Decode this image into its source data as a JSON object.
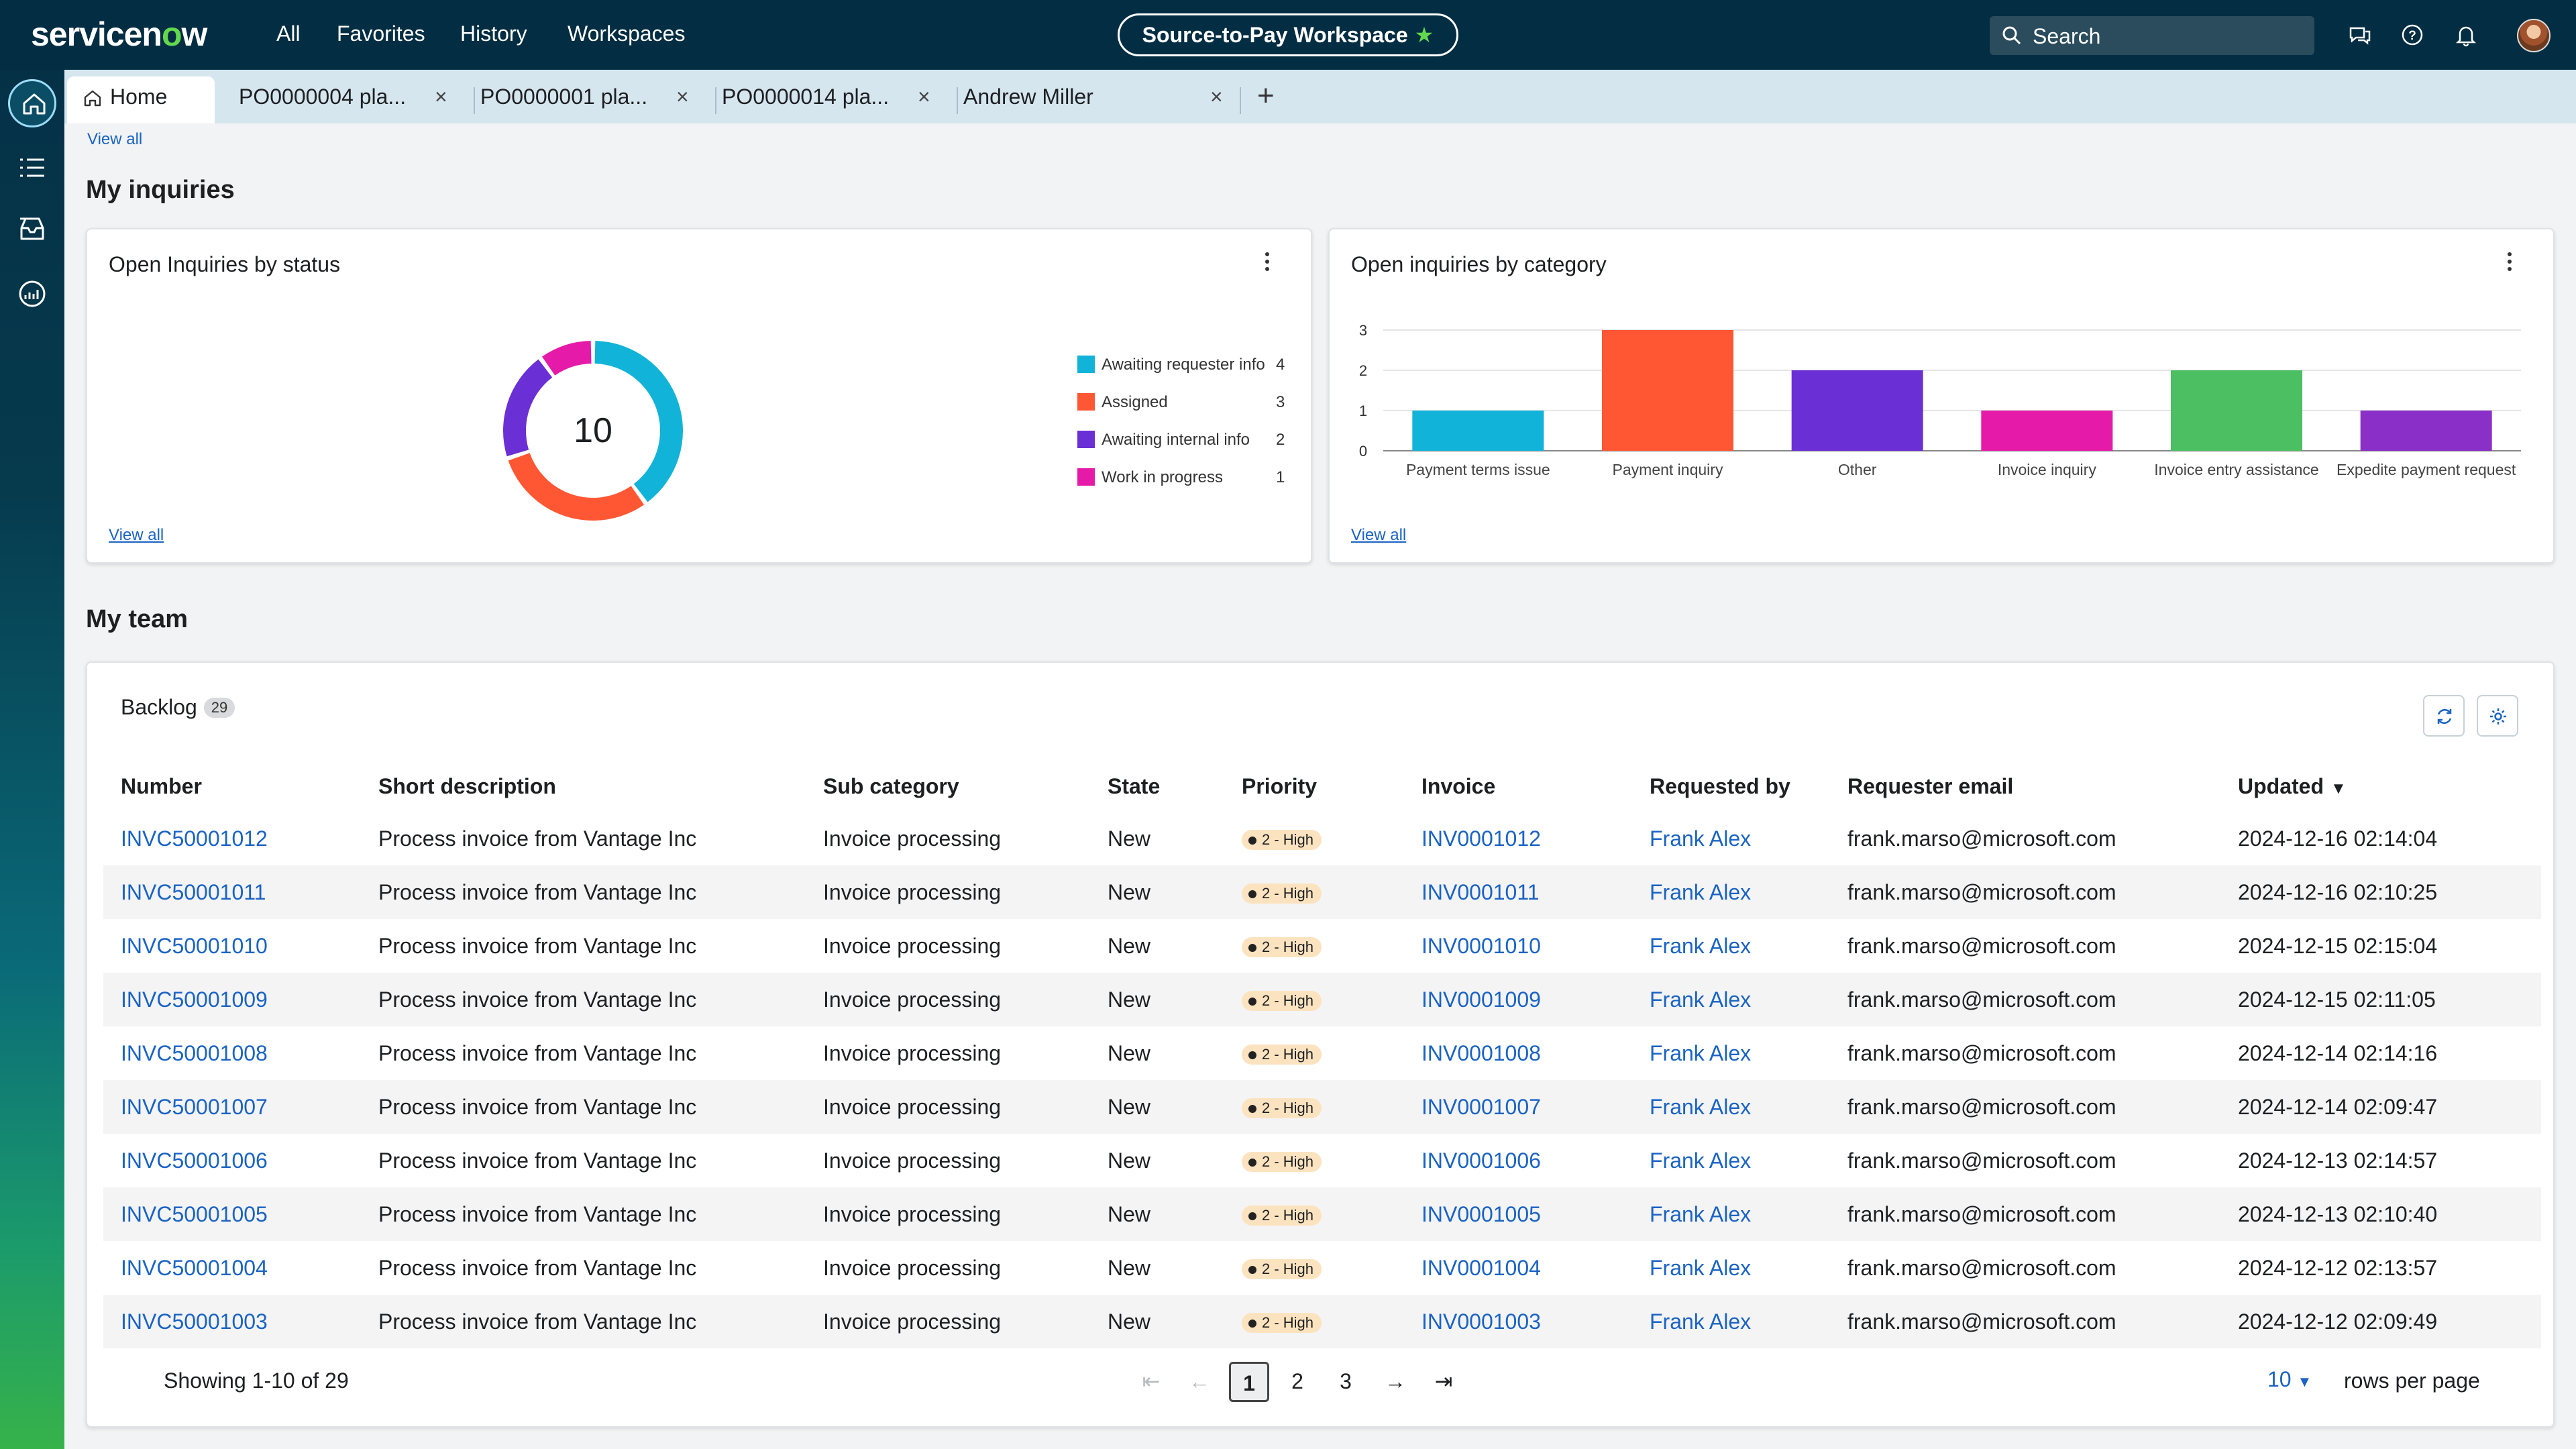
{
  "header": {
    "logo": "servicenow",
    "nav": [
      "All",
      "Favorites",
      "History",
      "Workspaces"
    ],
    "workspace": "Source-to-Pay Workspace",
    "search_placeholder": "Search"
  },
  "tabs": [
    {
      "label": "Home"
    },
    {
      "label": "PO0000004 pla..."
    },
    {
      "label": "PO0000001 pla..."
    },
    {
      "label": "PO0000014 pla..."
    },
    {
      "label": "Andrew Miller"
    }
  ],
  "top_view_all": "View all",
  "inquiries": {
    "title": "My inquiries",
    "status_card": {
      "title": "Open Inquiries by status",
      "total": "10",
      "view_all": "View all"
    },
    "category_card": {
      "title": "Open inquiries by category",
      "view_all": "View all"
    }
  },
  "colors": {
    "awaiting_requester": "#12b3d8",
    "assigned": "#ff5733",
    "awaiting_internal": "#6b2fd6",
    "work_in_progress": "#e61aa8",
    "cat_payment_terms": "#12b3d8",
    "cat_payment_inquiry": "#ff5733",
    "cat_other": "#6b2fd6",
    "cat_invoice_inquiry": "#e61aa8",
    "cat_invoice_entry": "#4bbf62",
    "cat_expedite": "#8a2fc7",
    "accent_link": "#1a63c4"
  },
  "chart_data": [
    {
      "type": "pie",
      "title": "Open Inquiries by status",
      "categories": [
        "Awaiting requester info",
        "Assigned",
        "Awaiting internal info",
        "Work in progress"
      ],
      "values": [
        4,
        3,
        2,
        1
      ],
      "center_label": "10",
      "legend": "right"
    },
    {
      "type": "bar",
      "title": "Open inquiries by category",
      "categories": [
        "Payment terms issue",
        "Payment inquiry",
        "Other",
        "Invoice inquiry",
        "Invoice entry assistance",
        "Expedite payment request"
      ],
      "values": [
        1,
        3,
        2,
        1,
        2,
        1
      ],
      "yticks": [
        "0",
        "1",
        "2",
        "3"
      ],
      "ylim": [
        0,
        3
      ],
      "grid": true
    }
  ],
  "team": {
    "title": "My team",
    "backlog_label": "Backlog",
    "backlog_count": "29",
    "columns": [
      "Number",
      "Short description",
      "Sub category",
      "State",
      "Priority",
      "Invoice",
      "Requested by",
      "Requester email",
      "Updated"
    ],
    "rows": [
      {
        "number": "INVC50001012",
        "desc": "Process invoice from Vantage Inc",
        "sub": "Invoice processing",
        "state": "New",
        "priority": "2 - High",
        "invoice": "INV0001012",
        "requested_by": "Frank Alex",
        "email": "frank.marso@microsoft.com",
        "updated": "2024-12-16 02:14:04"
      },
      {
        "number": "INVC50001011",
        "desc": "Process invoice from Vantage Inc",
        "sub": "Invoice processing",
        "state": "New",
        "priority": "2 - High",
        "invoice": "INV0001011",
        "requested_by": "Frank Alex",
        "email": "frank.marso@microsoft.com",
        "updated": "2024-12-16 02:10:25"
      },
      {
        "number": "INVC50001010",
        "desc": "Process invoice from Vantage Inc",
        "sub": "Invoice processing",
        "state": "New",
        "priority": "2 - High",
        "invoice": "INV0001010",
        "requested_by": "Frank Alex",
        "email": "frank.marso@microsoft.com",
        "updated": "2024-12-15 02:15:04"
      },
      {
        "number": "INVC50001009",
        "desc": "Process invoice from Vantage Inc",
        "sub": "Invoice processing",
        "state": "New",
        "priority": "2 - High",
        "invoice": "INV0001009",
        "requested_by": "Frank Alex",
        "email": "frank.marso@microsoft.com",
        "updated": "2024-12-15 02:11:05"
      },
      {
        "number": "INVC50001008",
        "desc": "Process invoice from Vantage Inc",
        "sub": "Invoice processing",
        "state": "New",
        "priority": "2 - High",
        "invoice": "INV0001008",
        "requested_by": "Frank Alex",
        "email": "frank.marso@microsoft.com",
        "updated": "2024-12-14 02:14:16"
      },
      {
        "number": "INVC50001007",
        "desc": "Process invoice from Vantage Inc",
        "sub": "Invoice processing",
        "state": "New",
        "priority": "2 - High",
        "invoice": "INV0001007",
        "requested_by": "Frank Alex",
        "email": "frank.marso@microsoft.com",
        "updated": "2024-12-14 02:09:47"
      },
      {
        "number": "INVC50001006",
        "desc": "Process invoice from Vantage Inc",
        "sub": "Invoice processing",
        "state": "New",
        "priority": "2 - High",
        "invoice": "INV0001006",
        "requested_by": "Frank Alex",
        "email": "frank.marso@microsoft.com",
        "updated": "2024-12-13 02:14:57"
      },
      {
        "number": "INVC50001005",
        "desc": "Process invoice from Vantage Inc",
        "sub": "Invoice processing",
        "state": "New",
        "priority": "2 - High",
        "invoice": "INV0001005",
        "requested_by": "Frank Alex",
        "email": "frank.marso@microsoft.com",
        "updated": "2024-12-13 02:10:40"
      },
      {
        "number": "INVC50001004",
        "desc": "Process invoice from Vantage Inc",
        "sub": "Invoice processing",
        "state": "New",
        "priority": "2 - High",
        "invoice": "INV0001004",
        "requested_by": "Frank Alex",
        "email": "frank.marso@microsoft.com",
        "updated": "2024-12-12 02:13:57"
      },
      {
        "number": "INVC50001003",
        "desc": "Process invoice from Vantage Inc",
        "sub": "Invoice processing",
        "state": "New",
        "priority": "2 - High",
        "invoice": "INV0001003",
        "requested_by": "Frank Alex",
        "email": "frank.marso@microsoft.com",
        "updated": "2024-12-12 02:09:49"
      }
    ],
    "footer": {
      "showing": "Showing 1-10 of 29",
      "pages": [
        "1",
        "2",
        "3"
      ],
      "current_page": "1",
      "rows_per_page_value": "10",
      "rows_per_page_label": "rows per page"
    }
  }
}
